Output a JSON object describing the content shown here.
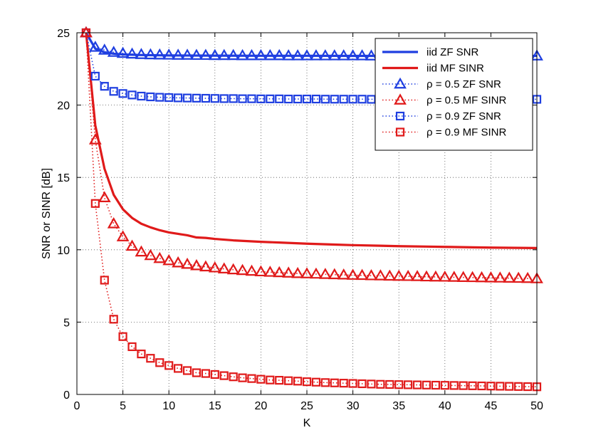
{
  "chart_data": {
    "type": "line",
    "title": "",
    "xlabel": "K",
    "ylabel": "SNR or SINR [dB]",
    "xlim": [
      0,
      50
    ],
    "ylim": [
      0,
      25
    ],
    "xticks": [
      0,
      5,
      10,
      15,
      20,
      25,
      30,
      35,
      40,
      45,
      50
    ],
    "yticks": [
      0,
      5,
      10,
      15,
      20,
      25
    ],
    "grid": true,
    "legend_position": "top-right",
    "colors": {
      "blue": "#1f3fe0",
      "red": "#e01a1a"
    },
    "series": [
      {
        "name": "iid ZF SNR",
        "color": "#1f3fe0",
        "style": "solid",
        "marker": "none",
        "x": [
          1,
          2,
          3,
          4,
          5,
          6,
          7,
          8,
          9,
          10,
          15,
          20,
          25,
          30,
          35,
          40,
          45,
          50
        ],
        "y": [
          25.0,
          23.9,
          23.65,
          23.55,
          23.5,
          23.48,
          23.46,
          23.45,
          23.44,
          23.43,
          23.42,
          23.41,
          23.41,
          23.4,
          23.4,
          23.4,
          23.4,
          23.4
        ]
      },
      {
        "name": "iid MF SINR",
        "color": "#e01a1a",
        "style": "solid",
        "marker": "none",
        "x": [
          1,
          2,
          3,
          4,
          5,
          6,
          7,
          8,
          9,
          10,
          11,
          12,
          13,
          14,
          15,
          17,
          20,
          22,
          25,
          28,
          30,
          33,
          35,
          38,
          40,
          43,
          45,
          48,
          50
        ],
        "y": [
          25.0,
          18.6,
          15.6,
          13.8,
          12.8,
          12.2,
          11.8,
          11.55,
          11.35,
          11.2,
          11.1,
          11.0,
          10.85,
          10.82,
          10.75,
          10.65,
          10.55,
          10.5,
          10.42,
          10.36,
          10.32,
          10.28,
          10.25,
          10.22,
          10.2,
          10.17,
          10.15,
          10.13,
          10.12
        ]
      },
      {
        "name": "ρ = 0.5 ZF SNR",
        "color": "#1f3fe0",
        "style": "dotted",
        "marker": "triangle",
        "x": [
          1,
          2,
          3,
          4,
          5,
          6,
          7,
          8,
          9,
          10,
          11,
          12,
          13,
          14,
          15,
          16,
          17,
          18,
          19,
          20,
          21,
          22,
          23,
          24,
          25,
          26,
          27,
          28,
          29,
          30,
          31,
          32,
          33,
          34,
          35,
          36,
          37,
          38,
          39,
          40,
          41,
          42,
          43,
          44,
          45,
          46,
          47,
          48,
          49,
          50
        ],
        "y": [
          25.0,
          24.0,
          23.8,
          23.65,
          23.58,
          23.53,
          23.5,
          23.48,
          23.47,
          23.46,
          23.45,
          23.45,
          23.44,
          23.44,
          23.43,
          23.43,
          23.43,
          23.42,
          23.42,
          23.42,
          23.42,
          23.42,
          23.41,
          23.41,
          23.41,
          23.41,
          23.41,
          23.41,
          23.41,
          23.41,
          23.41,
          23.4,
          23.4,
          23.4,
          23.4,
          23.4,
          23.4,
          23.4,
          23.4,
          23.4,
          23.4,
          23.4,
          23.4,
          23.4,
          23.4,
          23.4,
          23.4,
          23.4,
          23.4,
          23.4
        ]
      },
      {
        "name": "ρ = 0.5 MF SINR",
        "color": "#e01a1a",
        "style": "dotted",
        "marker": "triangle",
        "x": [
          1,
          2,
          3,
          4,
          5,
          6,
          7,
          8,
          9,
          10,
          11,
          12,
          13,
          14,
          15,
          16,
          17,
          18,
          19,
          20,
          21,
          22,
          23,
          24,
          25,
          26,
          27,
          28,
          29,
          30,
          31,
          32,
          33,
          34,
          35,
          36,
          37,
          38,
          39,
          40,
          41,
          42,
          43,
          44,
          45,
          46,
          47,
          48,
          49,
          50
        ],
        "y": [
          25.0,
          17.6,
          13.6,
          11.8,
          10.9,
          10.25,
          9.85,
          9.6,
          9.4,
          9.25,
          9.1,
          9.0,
          8.9,
          8.82,
          8.75,
          8.68,
          8.62,
          8.57,
          8.52,
          8.48,
          8.45,
          8.42,
          8.39,
          8.36,
          8.34,
          8.32,
          8.3,
          8.28,
          8.26,
          8.24,
          8.23,
          8.21,
          8.2,
          8.18,
          8.17,
          8.16,
          8.15,
          8.13,
          8.12,
          8.11,
          8.1,
          8.09,
          8.08,
          8.07,
          8.06,
          8.05,
          8.04,
          8.03,
          8.02,
          8.0
        ]
      },
      {
        "name": "ρ = 0.9 ZF SNR",
        "color": "#1f3fe0",
        "style": "dotted",
        "marker": "square",
        "x": [
          1,
          2,
          3,
          4,
          5,
          6,
          7,
          8,
          9,
          10,
          11,
          12,
          13,
          14,
          15,
          16,
          17,
          18,
          19,
          20,
          21,
          22,
          23,
          24,
          25,
          26,
          27,
          28,
          29,
          30,
          31,
          32,
          33,
          34,
          35,
          36,
          37,
          38,
          39,
          40,
          41,
          42,
          43,
          44,
          45,
          46,
          47,
          48,
          49,
          50
        ],
        "y": [
          25.0,
          22.0,
          21.3,
          20.95,
          20.8,
          20.7,
          20.62,
          20.57,
          20.54,
          20.52,
          20.5,
          20.49,
          20.48,
          20.47,
          20.46,
          20.45,
          20.45,
          20.44,
          20.44,
          20.43,
          20.43,
          20.43,
          20.42,
          20.42,
          20.42,
          20.42,
          20.41,
          20.41,
          20.41,
          20.41,
          20.41,
          20.4,
          20.4,
          20.4,
          20.4,
          20.4,
          20.4,
          20.4,
          20.4,
          20.4,
          20.4,
          20.4,
          20.4,
          20.4,
          20.4,
          20.4,
          20.4,
          20.4,
          20.4,
          20.4
        ]
      },
      {
        "name": "ρ = 0.9 MF SINR",
        "color": "#e01a1a",
        "style": "dotted",
        "marker": "square",
        "x": [
          1,
          2,
          3,
          4,
          5,
          6,
          7,
          8,
          9,
          10,
          11,
          12,
          13,
          14,
          15,
          16,
          17,
          18,
          19,
          20,
          21,
          22,
          23,
          24,
          25,
          26,
          27,
          28,
          29,
          30,
          31,
          32,
          33,
          34,
          35,
          36,
          37,
          38,
          39,
          40,
          41,
          42,
          43,
          44,
          45,
          46,
          47,
          48,
          49,
          50
        ],
        "y": [
          25.0,
          13.2,
          7.9,
          5.2,
          4.0,
          3.3,
          2.8,
          2.5,
          2.2,
          2.0,
          1.8,
          1.65,
          1.5,
          1.45,
          1.38,
          1.3,
          1.22,
          1.15,
          1.1,
          1.05,
          1.0,
          0.98,
          0.95,
          0.92,
          0.88,
          0.85,
          0.82,
          0.8,
          0.78,
          0.76,
          0.74,
          0.72,
          0.7,
          0.69,
          0.68,
          0.67,
          0.66,
          0.65,
          0.64,
          0.63,
          0.62,
          0.61,
          0.6,
          0.59,
          0.58,
          0.57,
          0.56,
          0.55,
          0.54,
          0.53
        ]
      }
    ]
  }
}
